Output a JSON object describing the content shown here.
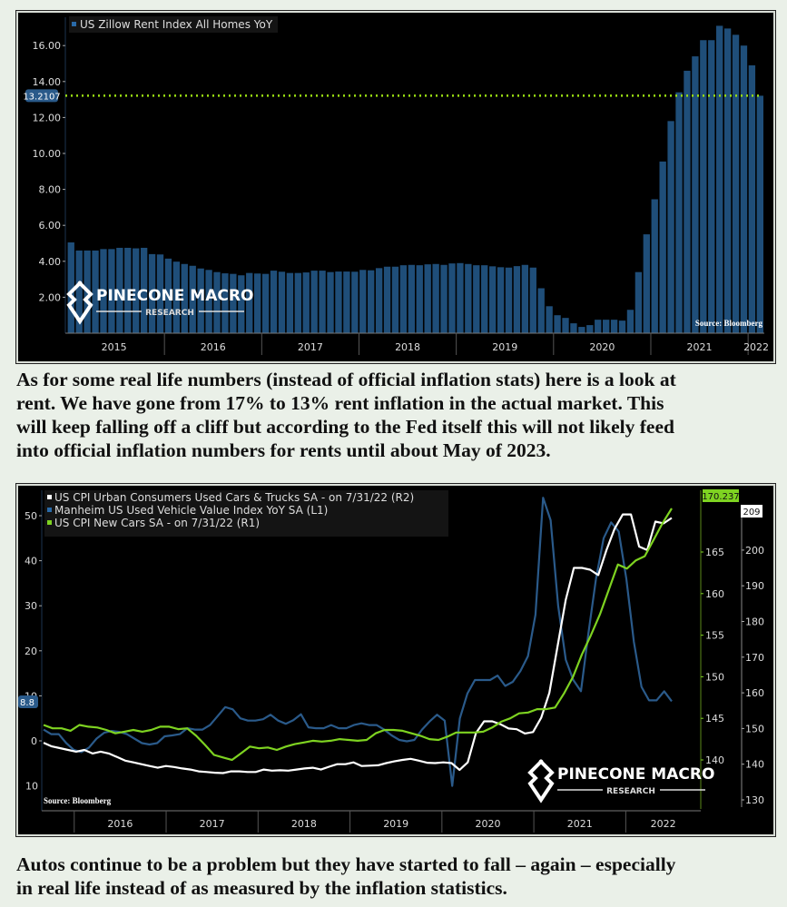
{
  "document": {
    "paragraph_1": [
      "As for some real life numbers (instead of official inflation stats) here is a look at",
      "rent. We have gone from 17% to 13% rent inflation in the actual market. This",
      "will keep falling off a cliff but according to the Fed itself this will not likely feed",
      "into official inflation numbers for rents until about May of 2023."
    ],
    "paragraph_2": [
      "Autos continue to be a problem but they have started to fall – again – especially",
      "in real life instead of as measured by the inflation statistics."
    ]
  },
  "colors": {
    "bar": "#1f4e79",
    "manheim": "#2a5a8a",
    "used_cars": "#ffffff",
    "new_cars": "#7ed321",
    "ref_line": "#9be012"
  },
  "watermark": {
    "line1": "PINECONE MACRO",
    "line2": "RESEARCH"
  },
  "chart_data": [
    {
      "type": "bar",
      "title": "US Zillow Rent Index All Homes YoY",
      "legend": [
        "US Zillow Rent Index All Homes YoY"
      ],
      "source": "Source: Bloomberg",
      "ylim": [
        0,
        17.5
      ],
      "yticks": [
        "2.00",
        "4.00",
        "6.00",
        "8.00",
        "10.00",
        "12.00",
        "14.00",
        "16.00"
      ],
      "ytick_values": [
        2,
        4,
        6,
        8,
        10,
        12,
        14,
        16
      ],
      "last_value_label": "13.2107",
      "reference_line": 13.2107,
      "xlabels": [
        "2015",
        "2016",
        "2017",
        "2018",
        "2019",
        "2020",
        "2021",
        "2022"
      ],
      "x_start": "2015-01",
      "x_end": "2022-07",
      "frequency": "monthly",
      "values": [
        5.05,
        4.6,
        4.6,
        4.6,
        4.68,
        4.68,
        4.75,
        4.75,
        4.72,
        4.75,
        4.4,
        4.38,
        4.15,
        3.98,
        3.85,
        3.75,
        3.6,
        3.52,
        3.4,
        3.33,
        3.3,
        3.22,
        3.35,
        3.32,
        3.3,
        3.48,
        3.42,
        3.35,
        3.35,
        3.38,
        3.48,
        3.48,
        3.4,
        3.43,
        3.43,
        3.42,
        3.52,
        3.5,
        3.62,
        3.7,
        3.7,
        3.78,
        3.8,
        3.78,
        3.83,
        3.85,
        3.8,
        3.88,
        3.9,
        3.85,
        3.78,
        3.78,
        3.72,
        3.67,
        3.65,
        3.73,
        3.8,
        3.65,
        2.5,
        1.5,
        1.0,
        0.85,
        0.55,
        0.35,
        0.45,
        0.75,
        0.75,
        0.75,
        0.7,
        1.3,
        3.4,
        5.5,
        7.45,
        9.55,
        11.8,
        13.4,
        14.6,
        15.4,
        16.3,
        16.3,
        17.1,
        16.95,
        16.6,
        16.0,
        14.9,
        13.21
      ],
      "xlabel": "",
      "ylabel": ""
    },
    {
      "type": "line",
      "legend": [
        "US CPI Urban Consumers Used Cars & Trucks SA -  on 7/31/22  (R2)",
        "Manheim US Used Vehicle Value Index YoY SA  (L1)",
        "US CPI New Cars SA -  on 7/31/22  (R1)"
      ],
      "source": "Source: Bloomberg",
      "left_axis": {
        "ticks": [
          "10",
          "0",
          "10",
          "20",
          "30",
          "40",
          "50"
        ],
        "values": [
          -10,
          0,
          10,
          20,
          30,
          40,
          50
        ],
        "last_label": "8.8"
      },
      "right_axis_1": {
        "ticks": [
          "140",
          "145",
          "150",
          "155",
          "160",
          "165"
        ],
        "values": [
          140,
          145,
          150,
          155,
          160,
          165
        ],
        "last_label": "170.237"
      },
      "right_axis_2": {
        "ticks": [
          "130",
          "140",
          "150",
          "160",
          "170",
          "180",
          "190",
          "200"
        ],
        "values": [
          130,
          140,
          150,
          160,
          170,
          180,
          190,
          200
        ],
        "last_label": "209"
      },
      "xlabels": [
        "2016",
        "2017",
        "2018",
        "2019",
        "2020",
        "2021",
        "2022"
      ],
      "x_start": "2015-09",
      "x_end": "2022-07",
      "series": [
        {
          "name": "Manheim US Used Vehicle Value Index YoY SA (L1)",
          "axis": "L1",
          "values": [
            2.5,
            1.5,
            1.5,
            -0.5,
            -2,
            -2.5,
            -1.5,
            0.5,
            1.8,
            2.2,
            2.0,
            1.5,
            0.5,
            -0.5,
            -0.8,
            -0.5,
            1.0,
            1.2,
            1.5,
            2.8,
            2.5,
            2.5,
            3.5,
            5.5,
            7.5,
            7.0,
            5.0,
            4.5,
            4.5,
            4.8,
            5.8,
            4.5,
            3.8,
            4.6,
            5.9,
            3.0,
            2.8,
            2.8,
            3.5,
            2.8,
            2.8,
            3.5,
            3.9,
            3.5,
            3.5,
            2.5,
            1.2,
            0.2,
            -0.1,
            0.2,
            2.5,
            4.3,
            5.8,
            4.5,
            -10,
            5,
            10.5,
            13.5,
            13.5,
            13.5,
            14.5,
            12.2,
            13.1,
            15.5,
            18.8,
            28,
            54,
            49,
            30,
            18,
            13.5,
            11,
            24,
            36,
            45,
            48.5,
            46.5,
            36,
            22,
            12,
            9,
            9,
            11,
            8.8
          ]
        },
        {
          "name": "US CPI Urban Consumers Used Cars & Trucks SA (R2)",
          "axis": "R2",
          "values": [
            146,
            145,
            144.5,
            144,
            143.5,
            144,
            143,
            143.5,
            143,
            142,
            141,
            140.5,
            140,
            139.5,
            139,
            139.5,
            139.2,
            138.8,
            138.5,
            138,
            137.8,
            137.6,
            137.5,
            138,
            138,
            137.8,
            137.8,
            138.5,
            138.2,
            138.3,
            138.2,
            138.5,
            138.8,
            139,
            138.5,
            139.3,
            140,
            140,
            140.5,
            139.5,
            139.6,
            139.7,
            140.3,
            140.8,
            141.2,
            141.5,
            141,
            140.4,
            140.3,
            140.5,
            140.3,
            138.4,
            140.5,
            148.7,
            152,
            152,
            151.2,
            150,
            149.8,
            148.6,
            149,
            153,
            160,
            173,
            186,
            195,
            195,
            194.5,
            193,
            200,
            206,
            210,
            210,
            201,
            200,
            208,
            207.5,
            209
          ]
        },
        {
          "name": "US CPI New Cars SA (R1)",
          "axis": "R1",
          "values": [
            144.2,
            143.8,
            143.8,
            143.5,
            144.2,
            144,
            143.9,
            143.6,
            143.2,
            143.4,
            143.6,
            143.4,
            143.6,
            144,
            144,
            143.7,
            143.8,
            142.9,
            141.8,
            140.6,
            140.3,
            140,
            140.8,
            141.6,
            141.4,
            141.5,
            141.2,
            141.6,
            141.9,
            142.1,
            142.3,
            142.2,
            142.3,
            142.5,
            142.4,
            142.3,
            142.4,
            143.2,
            143.6,
            143.6,
            143.5,
            143.2,
            142.9,
            142.5,
            142.4,
            142.8,
            143.3,
            143.3,
            143.3,
            143.4,
            143.9,
            144.6,
            145,
            145.6,
            145.7,
            146.1,
            146.1,
            146.3,
            148,
            150,
            152.7,
            155,
            157.5,
            160.5,
            163.5,
            163,
            164,
            164.5,
            166.5,
            168.5,
            170.237
          ]
        }
      ]
    }
  ]
}
